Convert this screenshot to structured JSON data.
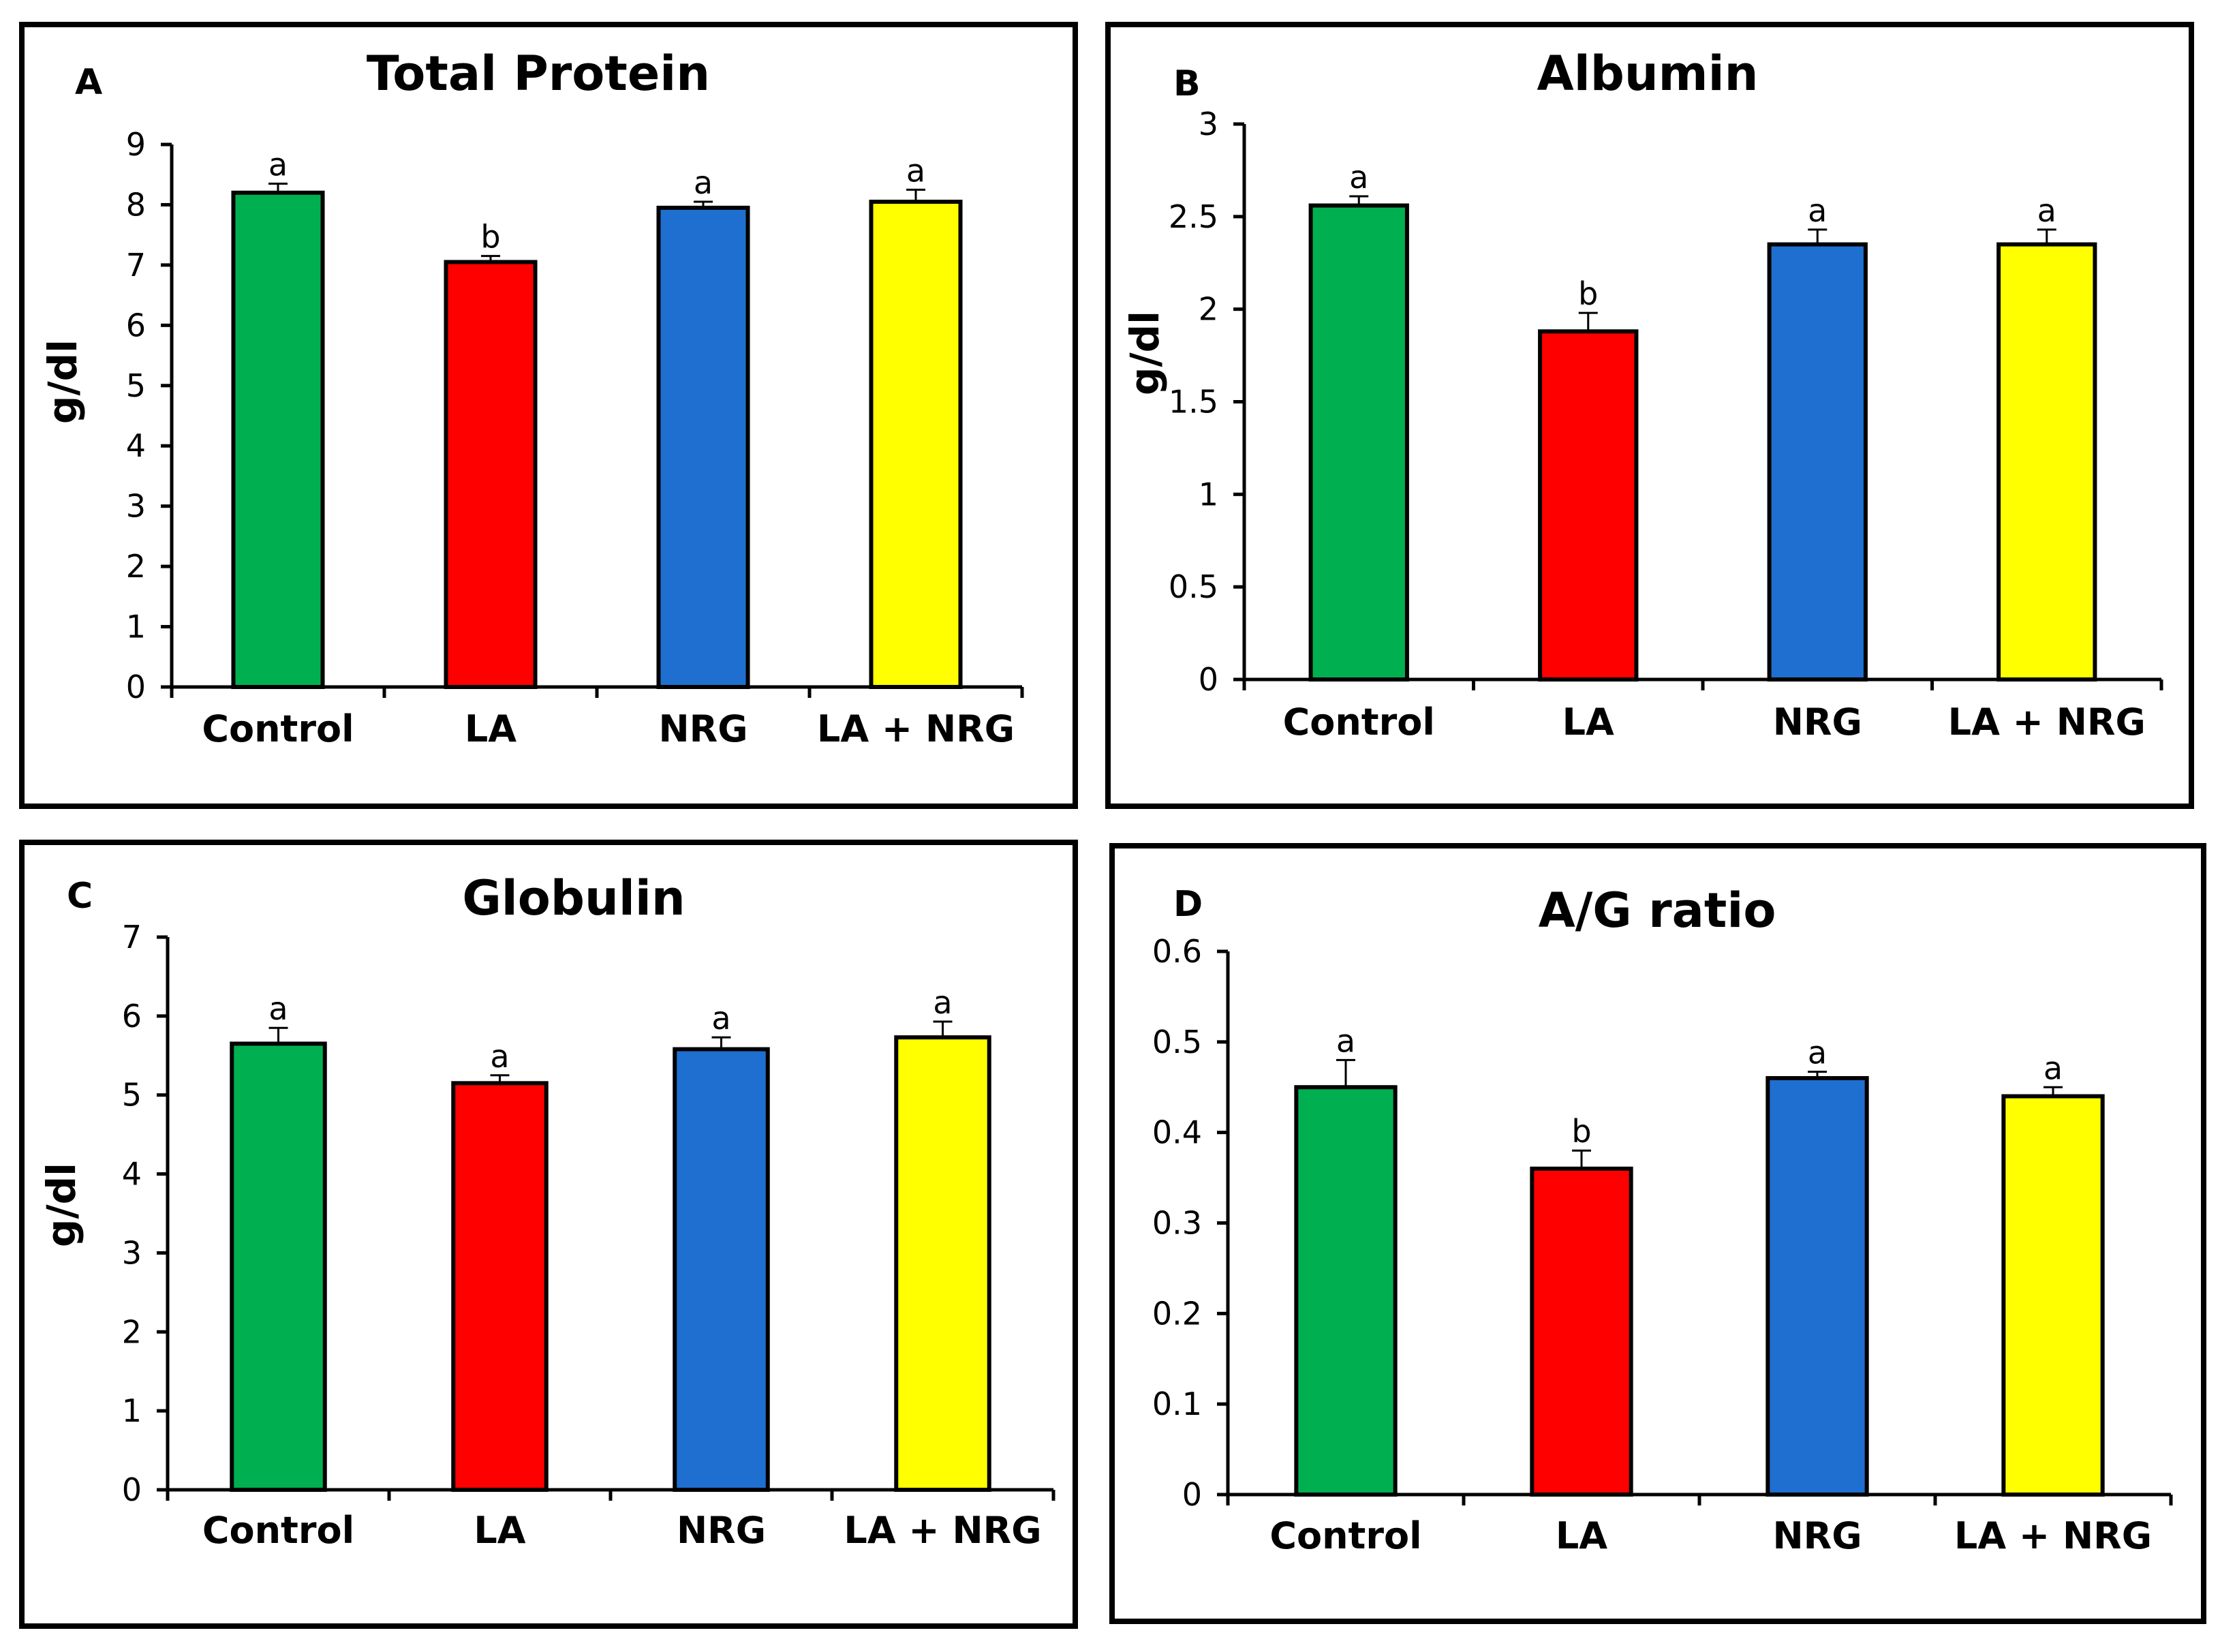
{
  "chart_data": [
    {
      "type": "bar",
      "panel_letter": "A",
      "title": "Total Protein",
      "ylabel": "g/dl",
      "xlabel": "",
      "categories": [
        "Control",
        "LA",
        "NRG",
        "LA + NRG"
      ],
      "values": [
        8.2,
        7.05,
        7.95,
        8.05
      ],
      "errors": [
        0.15,
        0.1,
        0.1,
        0.2
      ],
      "significance": [
        "a",
        "b",
        "a",
        "a"
      ],
      "colors": [
        "#00B050",
        "#FF0000",
        "#1F6FD0",
        "#FFFF00"
      ],
      "ylim": [
        0,
        9
      ],
      "yticks": [
        "0",
        "1",
        "2",
        "3",
        "4",
        "5",
        "6",
        "7",
        "8",
        "9"
      ]
    },
    {
      "type": "bar",
      "panel_letter": "B",
      "title": "Albumin",
      "ylabel": "g/dl",
      "xlabel": "",
      "categories": [
        "Control",
        "LA",
        "NRG",
        "LA + NRG"
      ],
      "values": [
        2.56,
        1.88,
        2.35,
        2.35
      ],
      "errors": [
        0.05,
        0.1,
        0.08,
        0.08
      ],
      "significance": [
        "a",
        "b",
        "a",
        "a"
      ],
      "colors": [
        "#00B050",
        "#FF0000",
        "#1F6FD0",
        "#FFFF00"
      ],
      "ylim": [
        0,
        3
      ],
      "yticks": [
        "0",
        "0.5",
        "1",
        "1.5",
        "2",
        "2.5",
        "3"
      ]
    },
    {
      "type": "bar",
      "panel_letter": "C",
      "title": "Globulin",
      "ylabel": "g/dl",
      "xlabel": "",
      "categories": [
        "Control",
        "LA",
        "NRG",
        "LA + NRG"
      ],
      "values": [
        5.65,
        5.15,
        5.58,
        5.73
      ],
      "errors": [
        0.2,
        0.1,
        0.15,
        0.2
      ],
      "significance": [
        "a",
        "a",
        "a",
        "a"
      ],
      "colors": [
        "#00B050",
        "#FF0000",
        "#1F6FD0",
        "#FFFF00"
      ],
      "ylim": [
        0,
        7
      ],
      "yticks": [
        "0",
        "1",
        "2",
        "3",
        "4",
        "5",
        "6",
        "7"
      ]
    },
    {
      "type": "bar",
      "panel_letter": "D",
      "title": "A/G ratio",
      "ylabel": "",
      "xlabel": "",
      "categories": [
        "Control",
        "LA",
        "NRG",
        "LA + NRG"
      ],
      "values": [
        0.45,
        0.36,
        0.46,
        0.44
      ],
      "errors": [
        0.03,
        0.02,
        0.007,
        0.01
      ],
      "significance": [
        "a",
        "b",
        "a",
        "a"
      ],
      "colors": [
        "#00B050",
        "#FF0000",
        "#1F6FD0",
        "#FFFF00"
      ],
      "ylim": [
        0,
        0.6
      ],
      "yticks": [
        "0",
        "0.1",
        "0.2",
        "0.3",
        "0.4",
        "0.5",
        "0.6"
      ]
    }
  ]
}
